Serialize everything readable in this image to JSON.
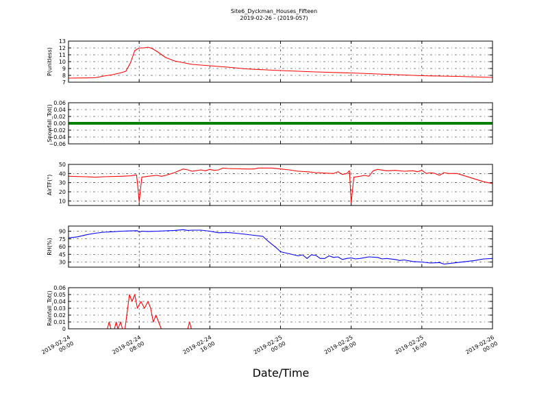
{
  "figure": {
    "title": "Site6_Dyckman_Houses_Fifteen",
    "subtitle": "2019-02-26 - (2019-057)",
    "xlabel": "Date/Time"
  },
  "chart_data": {
    "type": "line",
    "title": "Site6_Dyckman_Houses_Fifteen",
    "subtitle": "2019-02-26 - (2019-057)",
    "xlabel": "Date/Time",
    "x_unit": "hours since 2019-02-24 00:00",
    "xlim": [
      0,
      48
    ],
    "x_ticks": [
      {
        "x": 0,
        "line1": "2019-02-24",
        "line2": "00:00"
      },
      {
        "x": 8,
        "line1": "2019-02-24",
        "line2": "08:00"
      },
      {
        "x": 16,
        "line1": "2019-02-24",
        "line2": "16:00"
      },
      {
        "x": 24,
        "line1": "2019-02-25",
        "line2": "00:00"
      },
      {
        "x": 32,
        "line1": "2019-02-25",
        "line2": "08:00"
      },
      {
        "x": 40,
        "line1": "2019-02-25",
        "line2": "16:00"
      },
      {
        "x": 48,
        "line1": "2019-02-26",
        "line2": "00:00"
      }
    ],
    "grid": true,
    "panels": [
      {
        "ylabel": "P(unitless)",
        "ylim": [
          7,
          13
        ],
        "yticks": [
          7,
          8,
          9,
          10,
          11,
          12,
          13
        ],
        "color": "#ff0000",
        "series": [
          {
            "x": 0,
            "y": 7.6
          },
          {
            "x": 3,
            "y": 7.65
          },
          {
            "x": 4,
            "y": 7.9
          },
          {
            "x": 5,
            "y": 8.1
          },
          {
            "x": 6,
            "y": 8.4
          },
          {
            "x": 6.5,
            "y": 8.6
          },
          {
            "x": 7,
            "y": 9.8
          },
          {
            "x": 7.5,
            "y": 11.6
          },
          {
            "x": 8,
            "y": 12.0
          },
          {
            "x": 8.5,
            "y": 12.0
          },
          {
            "x": 9,
            "y": 12.1
          },
          {
            "x": 9.5,
            "y": 11.9
          },
          {
            "x": 10,
            "y": 11.5
          },
          {
            "x": 11,
            "y": 10.6
          },
          {
            "x": 12,
            "y": 10.1
          },
          {
            "x": 14,
            "y": 9.6
          },
          {
            "x": 16,
            "y": 9.4
          },
          {
            "x": 18,
            "y": 9.2
          },
          {
            "x": 20,
            "y": 8.95
          },
          {
            "x": 24,
            "y": 8.7
          },
          {
            "x": 28,
            "y": 8.5
          },
          {
            "x": 32,
            "y": 8.35
          },
          {
            "x": 36,
            "y": 8.15
          },
          {
            "x": 40,
            "y": 7.95
          },
          {
            "x": 44,
            "y": 7.85
          },
          {
            "x": 48,
            "y": 7.7
          }
        ]
      },
      {
        "ylabel": "Snowfall_Tot()",
        "ylim": [
          -0.06,
          0.06
        ],
        "yticks": [
          -0.06,
          -0.04,
          -0.02,
          0.0,
          0.02,
          0.04,
          0.06
        ],
        "ytick_labels": [
          "−0.06",
          "−0.04",
          "−0.02",
          "0.00",
          "0.02",
          "0.04",
          "0.06"
        ],
        "color": "#008000",
        "thick": true,
        "series": [
          {
            "x": 0,
            "y": 0
          },
          {
            "x": 48,
            "y": 0
          }
        ]
      },
      {
        "ylabel": "AirTF(°)",
        "ylim": [
          5,
          50
        ],
        "yticks": [
          10,
          20,
          30,
          40,
          50
        ],
        "color": "#ff0000",
        "series": [
          {
            "x": 0,
            "y": 37
          },
          {
            "x": 2,
            "y": 36.5
          },
          {
            "x": 3,
            "y": 36
          },
          {
            "x": 4,
            "y": 36.5
          },
          {
            "x": 6,
            "y": 37
          },
          {
            "x": 7,
            "y": 37.5
          },
          {
            "x": 7.7,
            "y": 38.5
          },
          {
            "x": 7.8,
            "y": 30
          },
          {
            "x": 8.0,
            "y": 9
          },
          {
            "x": 8.3,
            "y": 36
          },
          {
            "x": 9,
            "y": 37
          },
          {
            "x": 10,
            "y": 38
          },
          {
            "x": 10.5,
            "y": 37
          },
          {
            "x": 11,
            "y": 38
          },
          {
            "x": 12,
            "y": 41
          },
          {
            "x": 12.5,
            "y": 43
          },
          {
            "x": 13,
            "y": 45
          },
          {
            "x": 13.5,
            "y": 44
          },
          {
            "x": 14,
            "y": 42.5
          },
          {
            "x": 15,
            "y": 44
          },
          {
            "x": 15.5,
            "y": 43
          },
          {
            "x": 16,
            "y": 44.5
          },
          {
            "x": 16.5,
            "y": 43.5
          },
          {
            "x": 17,
            "y": 44
          },
          {
            "x": 17.5,
            "y": 46
          },
          {
            "x": 18,
            "y": 45.5
          },
          {
            "x": 20,
            "y": 45
          },
          {
            "x": 21,
            "y": 45
          },
          {
            "x": 21.5,
            "y": 46
          },
          {
            "x": 23,
            "y": 46
          },
          {
            "x": 24,
            "y": 45
          },
          {
            "x": 25,
            "y": 44
          },
          {
            "x": 26,
            "y": 42.5
          },
          {
            "x": 27,
            "y": 42
          },
          {
            "x": 28,
            "y": 41
          },
          {
            "x": 29,
            "y": 40.5
          },
          {
            "x": 30,
            "y": 40
          },
          {
            "x": 30.5,
            "y": 42
          },
          {
            "x": 31,
            "y": 39
          },
          {
            "x": 31.5,
            "y": 40
          },
          {
            "x": 31.8,
            "y": 43
          },
          {
            "x": 32.0,
            "y": 8
          },
          {
            "x": 32.3,
            "y": 36
          },
          {
            "x": 33,
            "y": 37
          },
          {
            "x": 33.5,
            "y": 38
          },
          {
            "x": 34,
            "y": 37
          },
          {
            "x": 34.5,
            "y": 43
          },
          {
            "x": 35,
            "y": 44.5
          },
          {
            "x": 36,
            "y": 43
          },
          {
            "x": 37,
            "y": 43.5
          },
          {
            "x": 38,
            "y": 42.5
          },
          {
            "x": 39,
            "y": 43
          },
          {
            "x": 39.5,
            "y": 42
          },
          {
            "x": 40,
            "y": 43.5
          },
          {
            "x": 40.5,
            "y": 40
          },
          {
            "x": 41,
            "y": 41
          },
          {
            "x": 41.5,
            "y": 40
          },
          {
            "x": 42,
            "y": 38
          },
          {
            "x": 42.5,
            "y": 41
          },
          {
            "x": 43,
            "y": 40
          },
          {
            "x": 44,
            "y": 40
          },
          {
            "x": 44.5,
            "y": 38.5
          },
          {
            "x": 45,
            "y": 37
          },
          {
            "x": 46,
            "y": 34
          },
          {
            "x": 47,
            "y": 31
          },
          {
            "x": 48,
            "y": 29
          }
        ]
      },
      {
        "ylabel": "RH(%)",
        "ylim": [
          20,
          100
        ],
        "yticks": [
          30,
          45,
          60,
          75,
          90
        ],
        "color": "#0000ff",
        "series": [
          {
            "x": 0,
            "y": 77
          },
          {
            "x": 1,
            "y": 79
          },
          {
            "x": 2,
            "y": 83
          },
          {
            "x": 3,
            "y": 86
          },
          {
            "x": 4,
            "y": 88
          },
          {
            "x": 5,
            "y": 89
          },
          {
            "x": 6,
            "y": 90
          },
          {
            "x": 7,
            "y": 90.5
          },
          {
            "x": 7.8,
            "y": 91
          },
          {
            "x": 8,
            "y": 88
          },
          {
            "x": 8.3,
            "y": 90
          },
          {
            "x": 9,
            "y": 89.5
          },
          {
            "x": 10,
            "y": 90
          },
          {
            "x": 12,
            "y": 91.5
          },
          {
            "x": 13,
            "y": 93
          },
          {
            "x": 13.5,
            "y": 91.5
          },
          {
            "x": 14,
            "y": 92
          },
          {
            "x": 15,
            "y": 92
          },
          {
            "x": 16,
            "y": 90
          },
          {
            "x": 17,
            "y": 87
          },
          {
            "x": 18,
            "y": 87.5
          },
          {
            "x": 19,
            "y": 86
          },
          {
            "x": 20,
            "y": 84
          },
          {
            "x": 21,
            "y": 82
          },
          {
            "x": 22,
            "y": 80
          },
          {
            "x": 22.5,
            "y": 72
          },
          {
            "x": 23,
            "y": 65
          },
          {
            "x": 23.5,
            "y": 58
          },
          {
            "x": 24,
            "y": 50
          },
          {
            "x": 25,
            "y": 46
          },
          {
            "x": 26,
            "y": 42
          },
          {
            "x": 26.5,
            "y": 44
          },
          {
            "x": 27,
            "y": 37
          },
          {
            "x": 27.5,
            "y": 44
          },
          {
            "x": 28,
            "y": 43
          },
          {
            "x": 28.5,
            "y": 37
          },
          {
            "x": 29,
            "y": 37
          },
          {
            "x": 29.5,
            "y": 42
          },
          {
            "x": 30,
            "y": 39
          },
          {
            "x": 30.5,
            "y": 40
          },
          {
            "x": 31,
            "y": 35
          },
          {
            "x": 31.5,
            "y": 37
          },
          {
            "x": 32,
            "y": 38
          },
          {
            "x": 32.5,
            "y": 36
          },
          {
            "x": 33,
            "y": 37
          },
          {
            "x": 34,
            "y": 40
          },
          {
            "x": 35,
            "y": 39
          },
          {
            "x": 35.5,
            "y": 36
          },
          {
            "x": 36,
            "y": 37
          },
          {
            "x": 37,
            "y": 35
          },
          {
            "x": 37.5,
            "y": 33
          },
          {
            "x": 38,
            "y": 34
          },
          {
            "x": 39,
            "y": 31
          },
          {
            "x": 40,
            "y": 30
          },
          {
            "x": 41,
            "y": 28
          },
          {
            "x": 42,
            "y": 29
          },
          {
            "x": 42.5,
            "y": 26
          },
          {
            "x": 43,
            "y": 27
          },
          {
            "x": 44,
            "y": 29
          },
          {
            "x": 45,
            "y": 31
          },
          {
            "x": 46,
            "y": 33
          },
          {
            "x": 47,
            "y": 36
          },
          {
            "x": 48,
            "y": 37
          }
        ]
      },
      {
        "ylabel": "Rainfall_Tot()",
        "ylim": [
          0,
          0.06
        ],
        "yticks": [
          0.0,
          0.01,
          0.02,
          0.03,
          0.04,
          0.05,
          0.06
        ],
        "color": "#ff0000",
        "series": [
          {
            "x": 0,
            "y": 0
          },
          {
            "x": 4.4,
            "y": 0
          },
          {
            "x": 4.6,
            "y": 0.01
          },
          {
            "x": 4.8,
            "y": 0
          },
          {
            "x": 5.2,
            "y": 0
          },
          {
            "x": 5.4,
            "y": 0.01
          },
          {
            "x": 5.6,
            "y": 0
          },
          {
            "x": 5.9,
            "y": 0.01
          },
          {
            "x": 6.1,
            "y": 0
          },
          {
            "x": 6.4,
            "y": 0
          },
          {
            "x": 6.7,
            "y": 0.03
          },
          {
            "x": 6.9,
            "y": 0.05
          },
          {
            "x": 7.2,
            "y": 0.04
          },
          {
            "x": 7.5,
            "y": 0.05
          },
          {
            "x": 7.8,
            "y": 0.03
          },
          {
            "x": 8.2,
            "y": 0.04
          },
          {
            "x": 8.6,
            "y": 0.03
          },
          {
            "x": 9.0,
            "y": 0.04
          },
          {
            "x": 9.3,
            "y": 0.03
          },
          {
            "x": 9.6,
            "y": 0.01
          },
          {
            "x": 9.9,
            "y": 0.02
          },
          {
            "x": 10.2,
            "y": 0.01
          },
          {
            "x": 10.5,
            "y": 0
          },
          {
            "x": 13.5,
            "y": 0
          },
          {
            "x": 13.7,
            "y": 0.01
          },
          {
            "x": 13.9,
            "y": 0
          },
          {
            "x": 48,
            "y": 0
          }
        ]
      }
    ]
  }
}
